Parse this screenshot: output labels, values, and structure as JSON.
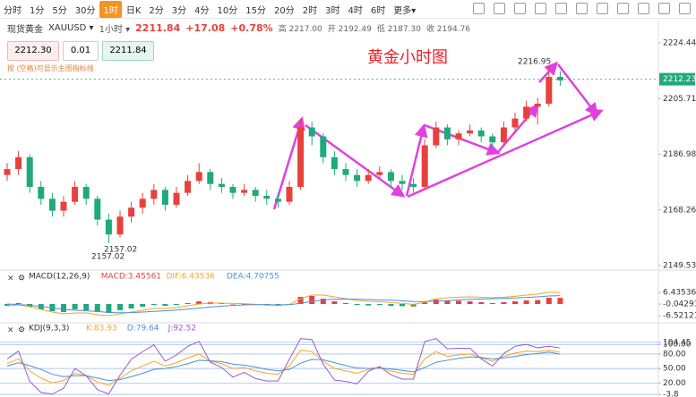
{
  "toolbar": {
    "periods": [
      "分时",
      "1分",
      "5分",
      "30分",
      "1时",
      "日K",
      "2分",
      "3分",
      "4分",
      "10分",
      "15分",
      "20分",
      "2时",
      "3时",
      "4时",
      "6时",
      "更多▾"
    ],
    "selected_index": 4
  },
  "quote": {
    "name": "现货黄金",
    "code": "XAUUSD ▾",
    "interval": "1小时 ▾",
    "price": "2211.84",
    "change": "+17.08",
    "percent": "+0.78%",
    "stats": [
      "高 2217.00",
      "开 2192.49",
      "低 2187.30",
      "收 2194.76"
    ]
  },
  "order": {
    "sell": "2212.30",
    "lot": "0.01",
    "buy": "2211.84"
  },
  "hint": "按 (空格)可显示主图指标线",
  "chart_data": [
    {
      "type": "candlestick",
      "title": "黄金小时图",
      "up_color": "#e8413c",
      "down_color": "#1fa97c",
      "ylim": [
        2148.63,
        2226.85
      ],
      "yticks": [
        2149.53,
        2168.26,
        2186.98,
        2205.71,
        2224.44
      ],
      "last_price": 2212.23,
      "annotations": [
        "2216.95",
        "2157.02",
        "2157.02"
      ],
      "candles": [
        [
          2180,
          2184,
          2178,
          2182
        ],
        [
          2182,
          2188,
          2180,
          2186
        ],
        [
          2186,
          2187,
          2174,
          2176
        ],
        [
          2176,
          2178,
          2170,
          2172
        ],
        [
          2172,
          2174,
          2166,
          2168
        ],
        [
          2168,
          2173,
          2166,
          2171
        ],
        [
          2171,
          2178,
          2170,
          2176
        ],
        [
          2176,
          2177,
          2170,
          2172
        ],
        [
          2172,
          2173,
          2163,
          2165
        ],
        [
          2165,
          2167,
          2157.02,
          2160
        ],
        [
          2160,
          2168,
          2159,
          2166
        ],
        [
          2166,
          2171,
          2164,
          2169
        ],
        [
          2169,
          2174,
          2167,
          2172
        ],
        [
          2172,
          2177,
          2170,
          2175
        ],
        [
          2175,
          2176,
          2168,
          2170
        ],
        [
          2170,
          2176,
          2169,
          2174
        ],
        [
          2174,
          2180,
          2173,
          2178
        ],
        [
          2178,
          2184,
          2177,
          2181
        ],
        [
          2181,
          2182,
          2175,
          2177
        ],
        [
          2177,
          2179,
          2174,
          2176
        ],
        [
          2176,
          2177,
          2172,
          2174
        ],
        [
          2174,
          2177,
          2173,
          2175
        ],
        [
          2175,
          2176,
          2171,
          2173
        ],
        [
          2173,
          2175,
          2170,
          2172
        ],
        [
          2172,
          2174,
          2169,
          2171
        ],
        [
          2171,
          2178,
          2170,
          2176
        ],
        [
          2176,
          2199,
          2175,
          2196
        ],
        [
          2196,
          2198,
          2190,
          2193
        ],
        [
          2193,
          2194,
          2184,
          2186
        ],
        [
          2186,
          2188,
          2180,
          2182
        ],
        [
          2182,
          2184,
          2178,
          2180
        ],
        [
          2180,
          2182,
          2176,
          2178
        ],
        [
          2178,
          2182,
          2177,
          2180
        ],
        [
          2180,
          2183,
          2179,
          2181
        ],
        [
          2181,
          2182,
          2176,
          2178
        ],
        [
          2178,
          2180,
          2175,
          2177
        ],
        [
          2177,
          2179,
          2174,
          2176
        ],
        [
          2176,
          2192,
          2175,
          2190
        ],
        [
          2190,
          2198,
          2189,
          2196
        ],
        [
          2196,
          2197,
          2190,
          2192
        ],
        [
          2192,
          2195,
          2190,
          2194
        ],
        [
          2194,
          2197,
          2193,
          2195
        ],
        [
          2195,
          2196,
          2191,
          2193
        ],
        [
          2193,
          2194,
          2189,
          2191
        ],
        [
          2191,
          2198,
          2190,
          2196
        ],
        [
          2196,
          2201,
          2195,
          2199
        ],
        [
          2199,
          2205,
          2198,
          2203
        ],
        [
          2203,
          2206,
          2197,
          2204
        ],
        [
          2204,
          2216.95,
          2203,
          2213
        ],
        [
          2213,
          2215,
          2210,
          2211.84
        ]
      ]
    },
    {
      "type": "macd",
      "title": "MACD(12,26,9)",
      "ylim": [
        -9,
        11
      ],
      "yticks": [
        6.43536,
        -0.04293,
        -6.52121
      ],
      "series": [
        {
          "name": "MACD:3.45561",
          "kind": "bar",
          "color": "#e8413c",
          "negative_color": "#1fa97c",
          "values": [
            -1,
            0.5,
            -1.5,
            -3,
            -4,
            -4.5,
            -3,
            -3.5,
            -4.5,
            -5,
            -3.5,
            -2.5,
            -1.5,
            -0.5,
            -1,
            -0.5,
            0.5,
            1.5,
            1,
            0.5,
            0,
            0,
            -0.5,
            -0.8,
            -1,
            0,
            4,
            4.5,
            3,
            1.5,
            0.5,
            -0.5,
            -0.8,
            -0.6,
            -1,
            -1.2,
            -1.4,
            0.8,
            2.5,
            2,
            1.8,
            1.5,
            1,
            0.5,
            1,
            1.5,
            2,
            2.2,
            3.5,
            3.45561
          ]
        },
        {
          "name": "DIF:6.43536",
          "kind": "line",
          "color": "#f5a623",
          "values": [
            -1,
            -0.5,
            -1.5,
            -3,
            -4.5,
            -5.5,
            -5,
            -5,
            -6,
            -6.5,
            -5.5,
            -4.5,
            -3.5,
            -2.5,
            -2.5,
            -2,
            -1,
            0,
            0.5,
            0.5,
            0.3,
            0.2,
            -0.2,
            -0.5,
            -0.8,
            -0.2,
            3,
            5,
            5,
            4,
            3,
            2,
            1.5,
            1.3,
            0.8,
            0.3,
            -0.2,
            1,
            3,
            3.5,
            3.8,
            4,
            3.8,
            3.5,
            3.8,
            4.3,
            5,
            5.5,
            6.6,
            6.43536
          ]
        },
        {
          "name": "DEA:4.70755",
          "kind": "line",
          "color": "#4a90e2",
          "values": [
            0,
            -0.3,
            -0.7,
            -1.4,
            -2.2,
            -3,
            -3.5,
            -3.8,
            -4.2,
            -4.7,
            -4.9,
            -4.8,
            -4.5,
            -4.1,
            -3.8,
            -3.4,
            -2.9,
            -2.3,
            -1.7,
            -1.2,
            -0.8,
            -0.5,
            -0.4,
            -0.4,
            -0.5,
            -0.4,
            0.4,
            1.5,
            2.3,
            2.7,
            2.8,
            2.7,
            2.5,
            2.3,
            2.1,
            1.8,
            1.4,
            1.3,
            1.6,
            1.9,
            2.3,
            2.6,
            2.8,
            3,
            3.2,
            3.4,
            3.7,
            4,
            4.5,
            4.70755
          ]
        }
      ]
    },
    {
      "type": "kdj",
      "title": "KDJ(9,3,3)",
      "ylim": [
        -5.5,
        117
      ],
      "yticks": [
        {
          "value": 100,
          "label": "100.00"
        },
        104.45,
        {
          "value": 80,
          "label": "80.00"
        },
        {
          "value": 50,
          "label": "50.00"
        },
        {
          "value": 20,
          "label": "20.00"
        },
        -3.8
      ],
      "series": [
        {
          "name": "K:83.93",
          "kind": "line",
          "color": "#f5a623",
          "values": [
            60,
            70,
            45,
            30,
            20,
            25,
            40,
            35,
            22,
            15,
            30,
            45,
            55,
            65,
            55,
            62,
            72,
            80,
            65,
            60,
            50,
            52,
            45,
            40,
            38,
            55,
            88,
            85,
            65,
            50,
            45,
            40,
            48,
            52,
            45,
            40,
            38,
            70,
            85,
            75,
            78,
            80,
            72,
            65,
            75,
            82,
            86,
            85,
            88,
            83.93
          ]
        },
        {
          "name": "D:79.64",
          "kind": "line",
          "color": "#4a90e2",
          "values": [
            55,
            62,
            56,
            48,
            38,
            33,
            35,
            35,
            30,
            25,
            27,
            33,
            40,
            48,
            50,
            54,
            60,
            67,
            66,
            64,
            59,
            57,
            53,
            48,
            45,
            48,
            61,
            69,
            68,
            62,
            56,
            51,
            50,
            51,
            49,
            46,
            43,
            52,
            63,
            67,
            71,
            74,
            73,
            70,
            72,
            75,
            79,
            81,
            84,
            79.64
          ]
        },
        {
          "name": "J:92.52",
          "kind": "line",
          "color": "#9b59d0",
          "values": [
            70,
            86,
            23,
            0,
            -3,
            9,
            50,
            35,
            6,
            -3,
            36,
            69,
            85,
            99,
            65,
            78,
            96,
            106,
            63,
            52,
            32,
            42,
            29,
            24,
            24,
            69,
            112,
            110,
            59,
            26,
            23,
            18,
            44,
            54,
            37,
            28,
            28,
            106,
            112,
            91,
            92,
            92,
            70,
            55,
            81,
            96,
            100,
            93,
            96,
            92.52
          ]
        }
      ]
    }
  ]
}
